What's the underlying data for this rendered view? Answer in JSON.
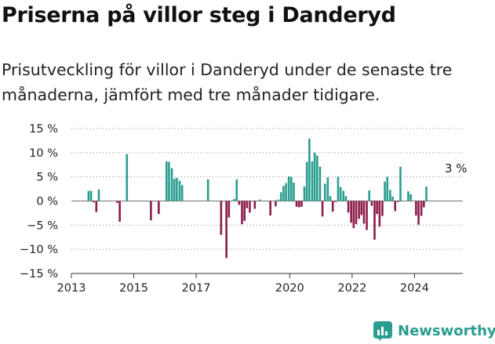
{
  "header": {
    "title": "Priserna på villor steg i Danderyd",
    "subtitle": "Prisutveckling för villor i Danderyd under de senaste tre månaderna, jämfört med tre månader tidigare."
  },
  "footer": {
    "brand": "Newsworthy"
  },
  "colors": {
    "positive": "#2a9d8f",
    "negative": "#8c1c4b",
    "axis": "#333333",
    "grid": "#888888",
    "brand": "#2a9d8f"
  },
  "icons": {
    "brand_logo": "newsworthy-chart-icon"
  },
  "chart_data": {
    "type": "bar",
    "title": "",
    "xlabel": "",
    "ylabel": "",
    "ylim": [
      -15,
      15
    ],
    "xlim": [
      2013.0,
      2025.55
    ],
    "yticks": [
      "15 %",
      "10 %",
      "5 %",
      "0 %",
      "−5 %",
      "−10 %",
      "−15 %"
    ],
    "ytick_values": [
      15,
      10,
      5,
      0,
      -5,
      -10,
      -15
    ],
    "xticks": [
      "2013",
      "2015",
      "2017",
      "2020",
      "2022",
      "2024"
    ],
    "xtick_values": [
      2013,
      2015,
      2017,
      2020,
      2022,
      2024
    ],
    "grid": "horizontal dotted at 5 % steps",
    "annotation": "3 %",
    "x": [
      2013.55,
      2013.63,
      2013.71,
      2013.8,
      2013.88,
      2014.47,
      2014.55,
      2014.78,
      2015.55,
      2015.8,
      2016.05,
      2016.13,
      2016.22,
      2016.3,
      2016.38,
      2016.47,
      2016.55,
      2016.63,
      2016.72,
      2017.38,
      2017.8,
      2017.97,
      2018.05,
      2018.22,
      2018.3,
      2018.38,
      2018.47,
      2018.55,
      2018.63,
      2018.72,
      2018.88,
      2019.05,
      2019.38,
      2019.55,
      2019.63,
      2019.72,
      2019.8,
      2019.88,
      2019.97,
      2020.05,
      2020.13,
      2020.22,
      2020.3,
      2020.38,
      2020.47,
      2020.55,
      2020.63,
      2020.72,
      2020.8,
      2020.88,
      2020.97,
      2021.05,
      2021.13,
      2021.22,
      2021.3,
      2021.38,
      2021.47,
      2021.55,
      2021.63,
      2021.72,
      2021.8,
      2021.88,
      2021.97,
      2022.05,
      2022.13,
      2022.22,
      2022.3,
      2022.38,
      2022.47,
      2022.55,
      2022.63,
      2022.72,
      2022.8,
      2022.88,
      2022.97,
      2023.05,
      2023.13,
      2023.22,
      2023.3,
      2023.38,
      2023.47,
      2023.55,
      2023.63,
      2023.72,
      2023.8,
      2023.88,
      2023.97,
      2024.05,
      2024.13,
      2024.22,
      2024.3,
      2024.38,
      2024.47,
      2024.55,
      2024.63,
      2024.72,
      2024.8,
      2024.88,
      2024.97,
      2025.05,
      2025.13,
      2025.22
    ],
    "values": [
      2.1,
      2.1,
      -0.3,
      -2.3,
      2.4,
      -0.4,
      -4.3,
      9.7,
      -4.0,
      -2.7,
      8.2,
      8.1,
      6.8,
      4.6,
      4.8,
      4.2,
      3.3,
      0.0,
      0.0,
      4.5,
      -7.0,
      -11.8,
      -3.4,
      0.4,
      4.5,
      -0.8,
      -4.8,
      -4.1,
      -1.5,
      -2.4,
      -1.6,
      0.3,
      -3.0,
      -1.1,
      0.3,
      1.8,
      3.1,
      3.7,
      5.1,
      5.0,
      3.8,
      -1.2,
      -1.3,
      -1.2,
      3.0,
      8.1,
      12.9,
      8.2,
      10.0,
      9.4,
      7.1,
      -3.2,
      3.6,
      4.9,
      1.0,
      -2.2,
      -0.2,
      5.0,
      2.9,
      2.1,
      1.0,
      -2.4,
      -4.5,
      -5.6,
      -4.8,
      -3.7,
      -2.9,
      -4.7,
      -6.0,
      2.2,
      -1.0,
      -8.0,
      -2.7,
      -5.3,
      -3.1,
      4.0,
      5.0,
      2.3,
      0.9,
      -2.1,
      -0.2,
      7.1,
      0.0,
      0.0,
      2.0,
      1.4,
      0.0,
      -3.0,
      -4.9,
      -3.1,
      -1.3,
      3.0,
      0.0,
      0.0,
      0.0,
      0.0,
      0.0,
      0.0,
      0.0,
      0.0,
      0.0,
      0.0
    ]
  }
}
